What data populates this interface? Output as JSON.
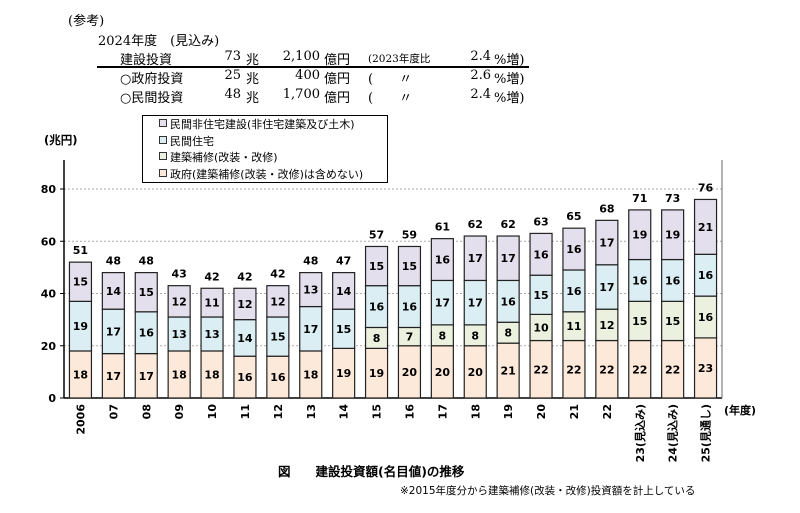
{
  "reference": {
    "heading": "(参考)",
    "year_label": "2024年度　(見込み)",
    "rows": [
      {
        "name": "建設投資",
        "cho": "73",
        "cho_unit": "兆",
        "oku": "2,100",
        "oku_unit": "億円",
        "compare": "(2023年度比",
        "pct": "2.4",
        "pct_unit": "%増)"
      },
      {
        "name": "○政府投資",
        "cho": "25",
        "cho_unit": "兆",
        "oku": "400",
        "oku_unit": "億円",
        "compare": "(　　〃",
        "pct": "2.6",
        "pct_unit": "%増)"
      },
      {
        "name": "○民間投資",
        "cho": "48",
        "cho_unit": "兆",
        "oku": "1,700",
        "oku_unit": "億円",
        "compare": "(　　〃",
        "pct": "2.4",
        "pct_unit": "%増)"
      }
    ]
  },
  "chart_data": {
    "type": "bar",
    "stacked": true,
    "title": "図　　建設投資額(名目値)の推移",
    "note": "※2015年度分から建築補修(改装・改修)投資額を計上している",
    "ylabel": "(兆円)",
    "xlabel": "(年度)",
    "ylim": [
      0,
      80
    ],
    "yticks": [
      0,
      20,
      40,
      60,
      80
    ],
    "grid": true,
    "categories": [
      "2006",
      "07",
      "08",
      "09",
      "10",
      "11",
      "12",
      "13",
      "14",
      "15",
      "16",
      "17",
      "18",
      "19",
      "20",
      "21",
      "22",
      "23(見込み)",
      "24(見込み)",
      "25(見通し)"
    ],
    "totals": [
      51,
      48,
      48,
      43,
      42,
      42,
      42,
      48,
      47,
      57,
      59,
      61,
      62,
      62,
      63,
      65,
      68,
      71,
      73,
      76
    ],
    "series": [
      {
        "name": "政府(建築補修(改装・改修)は含めない)",
        "color": "#fde9d9",
        "values": [
          18,
          17,
          17,
          18,
          18,
          16,
          16,
          18,
          19,
          19,
          20,
          20,
          20,
          21,
          22,
          22,
          22,
          22,
          22,
          23
        ]
      },
      {
        "name": "建築補修(改装・改修)",
        "color": "#ebf1de",
        "values": [
          null,
          null,
          null,
          null,
          null,
          null,
          null,
          null,
          null,
          8,
          7,
          8,
          8,
          8,
          10,
          11,
          12,
          15,
          15,
          16
        ]
      },
      {
        "name": "民間住宅",
        "color": "#dbeef4",
        "values": [
          19,
          17,
          16,
          13,
          13,
          14,
          15,
          17,
          15,
          16,
          16,
          17,
          17,
          16,
          15,
          16,
          17,
          16,
          16,
          16
        ]
      },
      {
        "name": "民間非住宅建設(非住宅建築及び土木)",
        "color": "#e4dfec",
        "values": [
          15,
          14,
          15,
          12,
          11,
          12,
          12,
          13,
          14,
          15,
          15,
          16,
          17,
          17,
          16,
          16,
          17,
          19,
          19,
          21
        ]
      }
    ],
    "legend_order": [
      3,
      2,
      1,
      0
    ],
    "legend_placement": "top-left"
  }
}
